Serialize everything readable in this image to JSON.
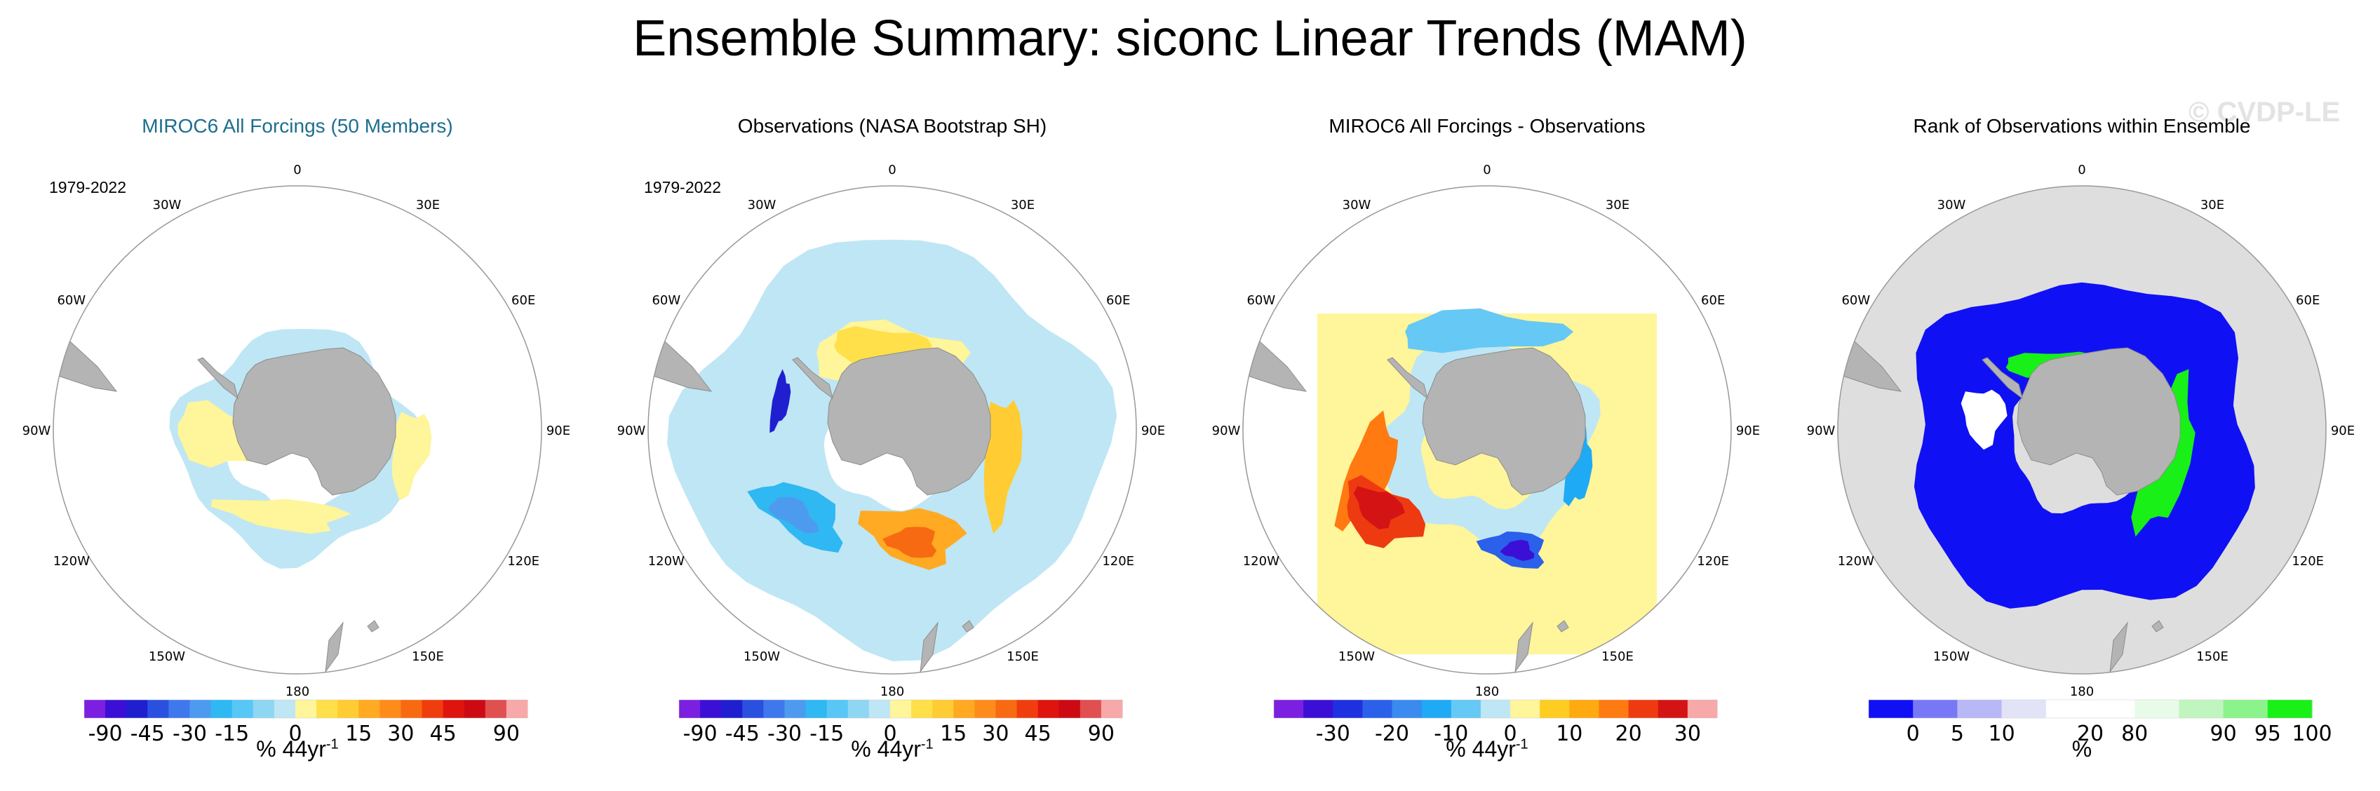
{
  "title": "Ensemble Summary: siconc Linear Trends (MAM)",
  "watermark": "© CVDP-LE",
  "longitude_labels": [
    "0",
    "30E",
    "60E",
    "90E",
    "120E",
    "150E",
    "180",
    "150W",
    "120W",
    "90W",
    "60W",
    "30W"
  ],
  "colors": {
    "land": "#b4b4b4",
    "map_outline": "#999999",
    "title_accent": "#1d6e8f",
    "cmap_trend": [
      "#7b1fe0",
      "#3b0fd6",
      "#1f1fd0",
      "#2a50e0",
      "#3f78ec",
      "#4d9bef",
      "#2fb8f2",
      "#58c7f6",
      "#8fd6f2",
      "#bfe6f4",
      "#fff59a",
      "#ffe04a",
      "#ffcc33",
      "#ffaa22",
      "#ff8c1a",
      "#f76a12",
      "#f03d0e",
      "#e0140e",
      "#cc0a14",
      "#e05050",
      "#f7a8a8"
    ],
    "cmap_diff": [
      "#7b1fe0",
      "#3b0fd6",
      "#1f30e0",
      "#2a60ea",
      "#3a8af0",
      "#1faaf5",
      "#66c8f5",
      "#bfe6f4",
      "#fff59a",
      "#ffcc22",
      "#ffaa11",
      "#ff7a11",
      "#ee3a11",
      "#d41414",
      "#f7a8a8"
    ],
    "cmap_rank": [
      "#1010f5",
      "#7878f7",
      "#b8b8f7",
      "#e3e3f8",
      "#ffffff",
      "#ffffff",
      "#e8fbe8",
      "#c0f5c0",
      "#8cf28c",
      "#18f018"
    ]
  },
  "chart_data": [
    {
      "type": "heatmap",
      "title": "MIROC6 All Forcings (50 Members)",
      "title_color": "#1d6e8f",
      "period": "1979-2022",
      "units": "% 44yr",
      "units_exponent": "-1",
      "colorbar_ticks": [
        "-90",
        "-45",
        "-30",
        "-15",
        "0",
        "15",
        "30",
        "45",
        "90"
      ],
      "colorbar_tick_positions": [
        1,
        3,
        5,
        7,
        10,
        13,
        15,
        17,
        20
      ]
    },
    {
      "type": "heatmap",
      "title": "Observations (NASA Bootstrap SH)",
      "title_color": "#000000",
      "period": "1979-2022",
      "units": "% 44yr",
      "units_exponent": "-1",
      "colorbar_ticks": [
        "-90",
        "-45",
        "-30",
        "-15",
        "0",
        "15",
        "30",
        "45",
        "90"
      ],
      "colorbar_tick_positions": [
        1,
        3,
        5,
        7,
        10,
        13,
        15,
        17,
        20
      ]
    },
    {
      "type": "heatmap",
      "title": "MIROC6 All Forcings - Observations",
      "title_color": "#000000",
      "period": "",
      "units": "% 44yr",
      "units_exponent": "-1",
      "colorbar_ticks": [
        "-30",
        "-20",
        "-10",
        "0",
        "10",
        "20",
        "30"
      ],
      "colorbar_tick_positions": [
        2,
        4,
        6,
        8,
        10,
        12,
        14
      ]
    },
    {
      "type": "heatmap",
      "title": "Rank of Observations within Ensemble",
      "title_color": "#000000",
      "period": "",
      "units": "%",
      "units_exponent": "",
      "colorbar_ticks": [
        "0",
        "5",
        "10",
        "20",
        "80",
        "90",
        "95",
        "100"
      ],
      "colorbar_tick_positions": [
        1,
        2,
        3,
        5,
        6,
        8,
        9,
        10
      ]
    }
  ]
}
